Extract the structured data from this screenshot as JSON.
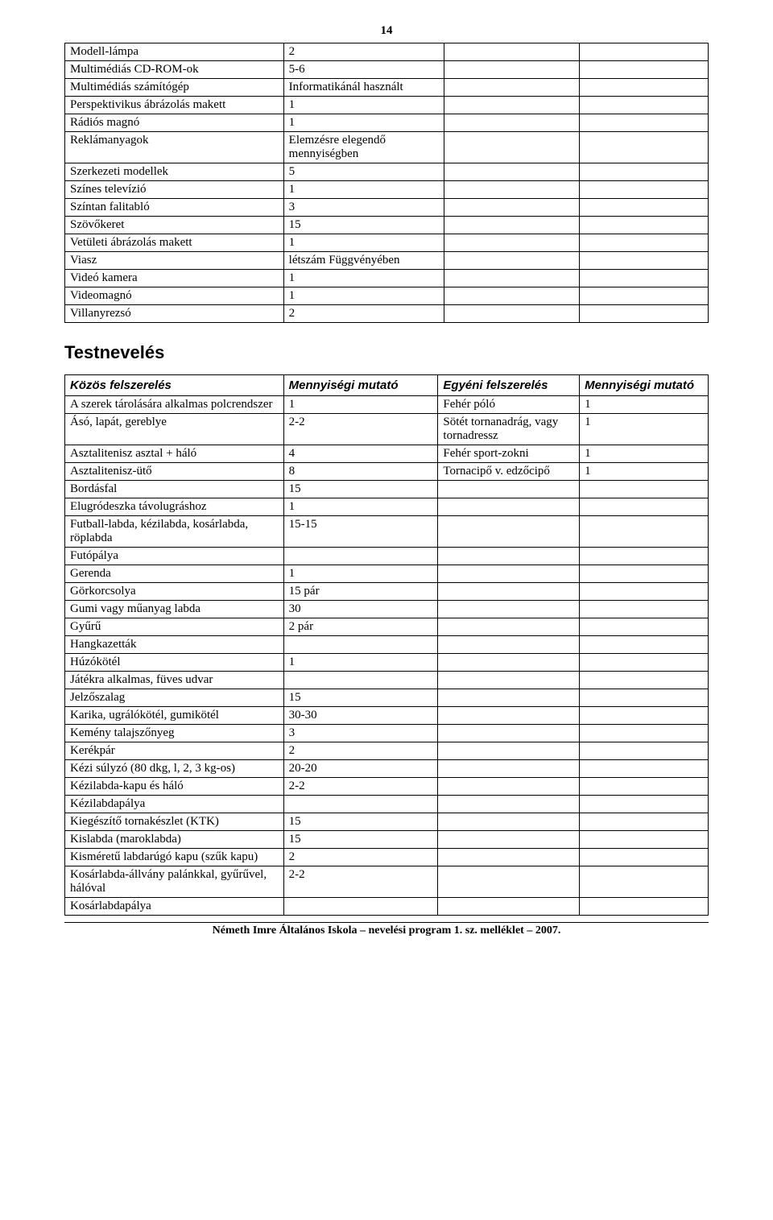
{
  "page_number": "14",
  "table1_rows": [
    [
      "Modell-lámpa",
      "2",
      "",
      ""
    ],
    [
      "Multimédiás CD-ROM-ok",
      "5-6",
      "",
      ""
    ],
    [
      "Multimédiás számítógép",
      "Informatikánál használt",
      "",
      ""
    ],
    [
      "Perspektivikus ábrázolás makett",
      "1",
      "",
      ""
    ],
    [
      "Rádiós magnó",
      "1",
      "",
      ""
    ],
    [
      "Reklámanyagok",
      "Elemzésre elegendő mennyiségben",
      "",
      ""
    ],
    [
      "Szerkezeti modellek",
      "5",
      "",
      ""
    ],
    [
      "Színes televízió",
      "1",
      "",
      ""
    ],
    [
      "Színtan falitabló",
      "3",
      "",
      ""
    ],
    [
      "Szövőkeret",
      "15",
      "",
      ""
    ],
    [
      "Vetületi ábrázolás makett",
      "1",
      "",
      ""
    ],
    [
      "Viasz",
      "létszám Függvényében",
      "",
      ""
    ],
    [
      "Videó kamera",
      "1",
      "",
      ""
    ],
    [
      "Videomagnó",
      "1",
      "",
      ""
    ],
    [
      "Villanyrezsó",
      "2",
      "",
      ""
    ]
  ],
  "section_title": "Testnevelés",
  "table2_headers": [
    "Közös felszerelés",
    "Mennyiségi mutató",
    "Egyéni felszerelés",
    "Mennyiségi mutató"
  ],
  "table2_rows": [
    [
      "A szerek tárolására alkalmas polcrendszer",
      "1",
      "Fehér póló",
      "1"
    ],
    [
      "Ásó, lapát, gereblye",
      "2-2",
      "Sötét tornanadrág, vagy tornadressz",
      "1"
    ],
    [
      "Asztalitenisz asztal + háló",
      "4",
      "Fehér sport-zokni",
      "1"
    ],
    [
      "Asztalitenisz-ütő",
      "8",
      "Tornacipő v. edzőcipő",
      "1"
    ],
    [
      "Bordásfal",
      "15",
      "",
      ""
    ],
    [
      "Elugródeszka távolugráshoz",
      "1",
      "",
      ""
    ],
    [
      "Futball-labda, kézilabda, kosárlabda, röplabda",
      "15-15",
      "",
      ""
    ],
    [
      "Futópálya",
      "",
      "",
      ""
    ],
    [
      "Gerenda",
      "1",
      "",
      ""
    ],
    [
      "Görkorcsolya",
      "15 pár",
      "",
      ""
    ],
    [
      "Gumi vagy műanyag labda",
      "30",
      "",
      ""
    ],
    [
      "Gyűrű",
      "2 pár",
      "",
      ""
    ],
    [
      "Hangkazetták",
      "",
      "",
      ""
    ],
    [
      "Húzókötél",
      "1",
      "",
      ""
    ],
    [
      "Játékra alkalmas, füves udvar",
      "",
      "",
      ""
    ],
    [
      "Jelzőszalag",
      "15",
      "",
      ""
    ],
    [
      "Karika, ugrálókötél, gumikötél",
      "30-30",
      "",
      ""
    ],
    [
      "Kemény talajszőnyeg",
      "3",
      "",
      ""
    ],
    [
      "Kerékpár",
      "2",
      "",
      ""
    ],
    [
      "Kézi súlyzó (80 dkg, l, 2, 3 kg-os)",
      "20-20",
      "",
      ""
    ],
    [
      "Kézilabda-kapu és háló",
      "2-2",
      "",
      ""
    ],
    [
      "Kézilabdapálya",
      "",
      "",
      ""
    ],
    [
      "Kiegészítő tornakészlet (KTK)",
      "15",
      "",
      ""
    ],
    [
      "Kislabda (maroklabda)",
      "15",
      "",
      ""
    ],
    [
      "Kisméretű labdarúgó kapu (szűk kapu)",
      "2",
      "",
      ""
    ],
    [
      "Kosárlabda-állvány palánkkal, gyűrűvel, hálóval",
      "2-2",
      "",
      ""
    ],
    [
      "Kosárlabdapálya",
      "",
      "",
      ""
    ]
  ],
  "footer_text": "Németh Imre Általános Iskola – nevelési program 1. sz. melléklet – 2007."
}
